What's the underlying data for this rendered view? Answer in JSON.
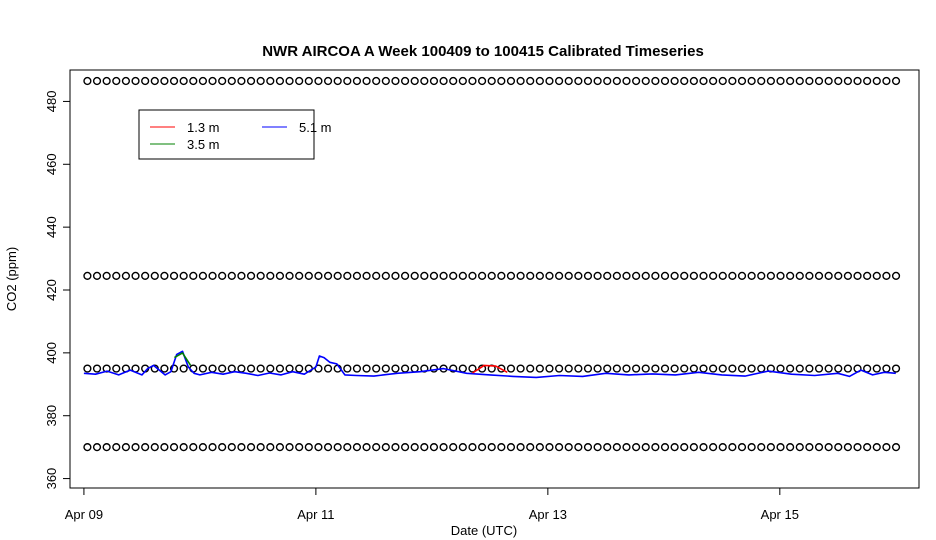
{
  "chart_data": {
    "type": "line",
    "title": "NWR AIRCOA A  Week 100409 to 100415  Calibrated Timeseries",
    "xlabel": "Date (UTC)",
    "ylabel": "CO2 (ppm)",
    "x_unit": "days since 2010-04-09 00:00 UTC",
    "xlim": [
      -0.12,
      7.2
    ],
    "ylim": [
      357,
      490
    ],
    "x_ticks": [
      {
        "value": 0,
        "label": "Apr 09"
      },
      {
        "value": 2,
        "label": "Apr 11"
      },
      {
        "value": 4,
        "label": "Apr 13"
      },
      {
        "value": 6,
        "label": "Apr 15"
      }
    ],
    "y_ticks": [
      360,
      380,
      400,
      420,
      440,
      460,
      480
    ],
    "legend": {
      "position": "top-left",
      "entries": [
        {
          "name": "1.3 m",
          "color": "#ff0000"
        },
        {
          "name": "5.1 m",
          "color": "#0000ff"
        },
        {
          "name": "3.5 m",
          "color": "#008000"
        }
      ]
    },
    "calibration_points": {
      "marker": "open-circle",
      "color": "#000000",
      "levels": [
        486.5,
        424.5,
        395,
        370
      ],
      "x_start": 0.03,
      "x_end": 7.03,
      "x_step": 0.083
    },
    "series": [
      {
        "name": "5.1 m",
        "color": "#0000ff",
        "x": [
          0.0,
          0.1,
          0.2,
          0.3,
          0.4,
          0.5,
          0.55,
          0.6,
          0.65,
          0.7,
          0.75,
          0.8,
          0.85,
          0.9,
          0.95,
          1.0,
          1.1,
          1.2,
          1.3,
          1.4,
          1.5,
          1.6,
          1.7,
          1.8,
          1.9,
          2.0,
          2.03,
          2.07,
          2.12,
          2.18,
          2.25,
          2.35,
          2.5,
          2.7,
          2.9,
          3.1,
          3.3,
          3.5,
          3.7,
          3.9,
          4.1,
          4.3,
          4.5,
          4.7,
          4.9,
          5.1,
          5.3,
          5.5,
          5.7,
          5.9,
          6.1,
          6.3,
          6.5,
          6.6,
          6.7,
          6.8,
          6.9,
          7.0
        ],
        "y": [
          393.5,
          393.2,
          394.2,
          393.0,
          394.5,
          393.0,
          395.0,
          396.0,
          394.5,
          393.0,
          394.0,
          399.5,
          400.5,
          395.5,
          393.5,
          393.0,
          393.8,
          393.2,
          394.0,
          393.5,
          392.8,
          393.6,
          393.0,
          394.0,
          393.2,
          395.5,
          399.0,
          398.5,
          397.0,
          396.5,
          393.0,
          392.8,
          392.6,
          393.5,
          394.0,
          395.0,
          393.5,
          393.0,
          392.5,
          392.2,
          392.8,
          392.5,
          393.5,
          393.0,
          393.3,
          393.0,
          393.8,
          393.0,
          392.6,
          394.2,
          393.2,
          392.8,
          393.5,
          392.5,
          394.5,
          393.0,
          393.8,
          393.5
        ]
      },
      {
        "name": "1.3 m",
        "color": "#ff0000",
        "x": [
          3.35,
          3.45,
          3.55,
          3.65
        ],
        "y": [
          393.6,
          396.0,
          395.8,
          393.8
        ]
      },
      {
        "name": "3.5 m",
        "color": "#008000",
        "x": [
          0.78,
          0.85,
          0.92
        ],
        "y": [
          398.5,
          400.0,
          396.0
        ]
      }
    ]
  }
}
